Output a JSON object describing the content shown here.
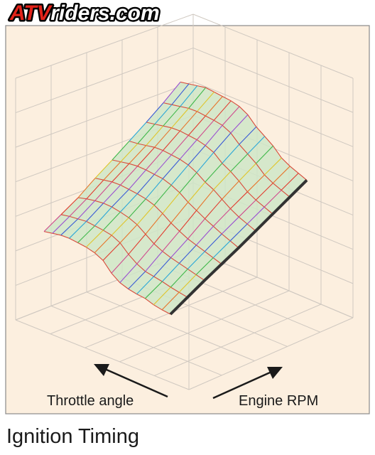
{
  "logo": {
    "text": "ATVriders.com",
    "prefix": "ATV",
    "suffix": "riders.com"
  },
  "caption": "Ignition Timing",
  "colors": {
    "panel_bg": "#fcefdf",
    "grid": "#cfc8c0",
    "surface_fill": "#cfe6c8",
    "logo_red": "#e2231a",
    "text": "#1a1a1a"
  },
  "chart_data": {
    "type": "surface",
    "title": "Ignition Timing",
    "xlabel": "Engine RPM",
    "ylabel": "Throttle angle",
    "zlabel": "",
    "grid": true,
    "ticks_labeled": false,
    "z_relative": [
      [
        0.0,
        0.02,
        0.05,
        0.1,
        0.12,
        0.15,
        0.2,
        0.3,
        0.45,
        0.52,
        0.56,
        0.58,
        0.6,
        0.6,
        0.58,
        0.56
      ],
      [
        0.02,
        0.05,
        0.08,
        0.12,
        0.15,
        0.18,
        0.25,
        0.35,
        0.48,
        0.55,
        0.58,
        0.6,
        0.62,
        0.61,
        0.6,
        0.58
      ],
      [
        0.04,
        0.08,
        0.12,
        0.16,
        0.2,
        0.25,
        0.32,
        0.42,
        0.52,
        0.58,
        0.62,
        0.65,
        0.66,
        0.65,
        0.63,
        0.6
      ],
      [
        0.05,
        0.1,
        0.15,
        0.2,
        0.25,
        0.32,
        0.4,
        0.5,
        0.58,
        0.63,
        0.66,
        0.68,
        0.7,
        0.7,
        0.68,
        0.66
      ],
      [
        0.06,
        0.12,
        0.18,
        0.25,
        0.32,
        0.4,
        0.48,
        0.58,
        0.65,
        0.7,
        0.72,
        0.74,
        0.75,
        0.74,
        0.72,
        0.7
      ],
      [
        0.08,
        0.14,
        0.2,
        0.28,
        0.38,
        0.48,
        0.55,
        0.65,
        0.72,
        0.76,
        0.78,
        0.8,
        0.8,
        0.78,
        0.76,
        0.75
      ],
      [
        0.1,
        0.16,
        0.22,
        0.3,
        0.42,
        0.52,
        0.6,
        0.72,
        0.78,
        0.82,
        0.84,
        0.86,
        0.86,
        0.84,
        0.82,
        0.8
      ],
      [
        0.12,
        0.18,
        0.24,
        0.32,
        0.45,
        0.55,
        0.65,
        0.78,
        0.85,
        0.88,
        0.9,
        0.92,
        0.92,
        0.9,
        0.88,
        0.86
      ],
      [
        0.14,
        0.2,
        0.26,
        0.34,
        0.48,
        0.58,
        0.68,
        0.82,
        0.9,
        0.94,
        0.96,
        0.98,
        1.0,
        0.98,
        0.96,
        0.94
      ]
    ]
  }
}
